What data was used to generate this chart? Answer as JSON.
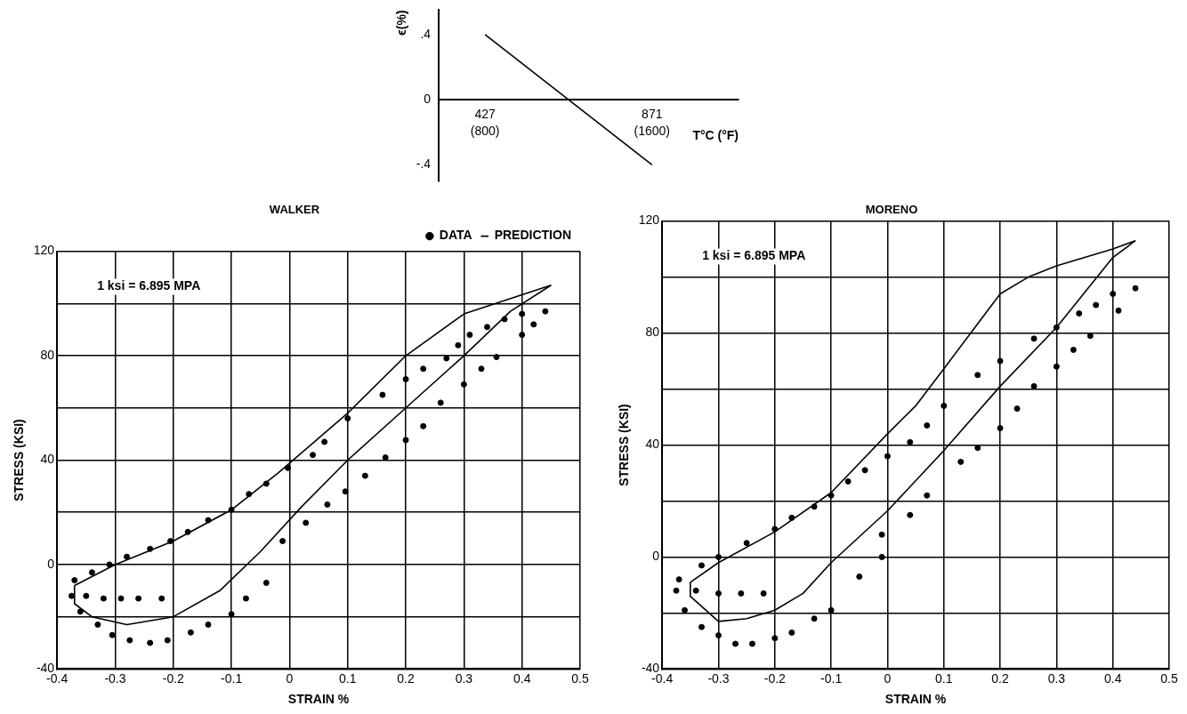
{
  "chart_data": [
    {
      "type": "line",
      "xlabel": "T°C (°F)",
      "ylabel": "ϵ(%)",
      "grid": false,
      "x": [
        427,
        871
      ],
      "xlim": [
        304,
        1101
      ],
      "ylim": [
        -0.5,
        0.55
      ],
      "xticks": [
        427,
        871
      ],
      "annotations": [
        "(800)",
        "(1600)"
      ],
      "yticks": [
        {
          "value": -0.4,
          "label": "-.4"
        },
        0,
        {
          "value": 0.4,
          "label": ".4"
        }
      ],
      "series": [
        {
          "color": "#000000",
          "values": [
            0.4,
            -0.4
          ]
        }
      ]
    },
    {
      "type": "scatter",
      "title": "WALKER",
      "xlabel": "STRAIN %",
      "ylabel": "STRESS (KSI)",
      "grid": true,
      "legend": "top right",
      "annotations": [
        "1 ksi = 6.895 MPA"
      ],
      "xlim": [
        -0.4,
        0.5
      ],
      "ylim": [
        -40,
        120
      ],
      "xticks": [
        -0.4,
        -0.3,
        -0.2,
        -0.1,
        0,
        0.1,
        0.2,
        0.3,
        0.4,
        0.5
      ],
      "yticks": [
        -40,
        {
          "value": -20,
          "label": null
        },
        0,
        {
          "value": 20,
          "label": null
        },
        40,
        {
          "value": 60,
          "label": null
        },
        80,
        {
          "value": 100,
          "label": null
        },
        120
      ],
      "series": [
        {
          "name": "DATA",
          "type": "scatter",
          "color": "#000000",
          "x": [
            0.44,
            0.42,
            0.4,
            0.356,
            0.33,
            0.3,
            0.26,
            0.23,
            0.2,
            0.165,
            0.13,
            0.096,
            0.065,
            0.028,
            -0.012,
            -0.04,
            -0.075,
            -0.1,
            -0.14,
            -0.17,
            -0.21,
            -0.24,
            -0.275,
            -0.305,
            -0.33,
            -0.36,
            -0.375,
            -0.37,
            -0.34,
            -0.31,
            -0.28,
            -0.24,
            -0.205,
            -0.175,
            -0.14,
            -0.1,
            -0.07,
            -0.04,
            -0.003,
            0.04,
            0.06,
            0.1,
            0.16,
            0.2,
            0.23,
            0.27,
            0.29,
            0.31,
            0.34,
            0.37,
            0.4,
            -0.35,
            -0.32,
            -0.29,
            -0.26,
            -0.22
          ],
          "values": [
            97,
            92,
            88,
            79.5,
            75,
            69,
            62,
            53,
            47.7,
            41,
            34,
            28,
            23,
            16,
            9,
            -7,
            -13,
            -19,
            -23,
            -26,
            -29,
            -30,
            -29,
            -27,
            -23,
            -18,
            -12,
            -6,
            -3,
            0,
            3,
            6,
            9,
            12.5,
            17,
            21,
            27,
            31,
            37,
            42,
            47,
            56,
            65,
            71,
            75,
            79,
            84,
            88,
            91,
            94,
            96,
            -12,
            -13,
            -13,
            -13,
            -13
          ]
        },
        {
          "name": "PREDICTION",
          "type": "line",
          "color": "#000000",
          "x": [
            -0.37,
            -0.3,
            -0.2,
            -0.1,
            -0.02,
            0.1,
            0.2,
            0.3,
            0.45
          ],
          "values": [
            -8,
            0,
            9,
            21,
            35,
            58,
            80,
            96,
            107
          ]
        },
        {
          "type": "line",
          "color": "#000000",
          "x": [
            0.45,
            0.38,
            0.3,
            0.2,
            0.1,
            0.02,
            -0.05,
            -0.12,
            -0.2,
            -0.28,
            -0.34,
            -0.37,
            -0.37
          ],
          "values": [
            107,
            97,
            80,
            60,
            40,
            22,
            5,
            -10,
            -20,
            -23,
            -20,
            -15,
            -8
          ]
        }
      ]
    },
    {
      "type": "scatter",
      "title": "MORENO",
      "xlabel": "STRAIN %",
      "ylabel": "STRESS (KSI)",
      "grid": true,
      "annotations": [
        "1 ksi = 6.895 MPA"
      ],
      "xlim": [
        -0.4,
        0.5
      ],
      "ylim": [
        -40,
        120
      ],
      "xticks": [
        -0.4,
        -0.3,
        -0.2,
        -0.1,
        0,
        0.1,
        0.2,
        0.3,
        0.4,
        0.5
      ],
      "yticks": [
        -40,
        {
          "value": -20,
          "label": null
        },
        0,
        {
          "value": 20,
          "label": null
        },
        40,
        {
          "value": 60,
          "label": null
        },
        80,
        {
          "value": 100,
          "label": null
        },
        120
      ],
      "series": [
        {
          "type": "scatter",
          "color": "#000000",
          "x": [
            -0.37,
            -0.33,
            -0.3,
            -0.25,
            -0.2,
            -0.17,
            -0.13,
            -0.1,
            -0.07,
            -0.04,
            0,
            0.04,
            0.07,
            0.1,
            0.16,
            0.2,
            0.26,
            0.3,
            0.34,
            0.37,
            0.4,
            0.44,
            0.41,
            0.36,
            0.33,
            0.3,
            0.26,
            0.23,
            0.2,
            0.16,
            0.13,
            0.07,
            0.04,
            -0.01,
            -0.01,
            -0.05,
            -0.1,
            -0.13,
            -0.17,
            -0.2,
            -0.24,
            -0.27,
            -0.3,
            -0.33,
            -0.36,
            -0.375,
            -0.34,
            -0.3,
            -0.26,
            -0.22
          ],
          "values": [
            -8,
            -3,
            0,
            5,
            10,
            14,
            18,
            22,
            27,
            31,
            36,
            41,
            47,
            54,
            65,
            70,
            78,
            82,
            87,
            90,
            94,
            96,
            88,
            79,
            74,
            68,
            61,
            53,
            46,
            39,
            34,
            22,
            15,
            8,
            0,
            -7,
            -19,
            -22,
            -27,
            -29,
            -31,
            -31,
            -28,
            -25,
            -19,
            -12,
            -12,
            -13,
            -13,
            -13
          ]
        },
        {
          "type": "line",
          "color": "#000000",
          "x": [
            -0.35,
            -0.3,
            -0.2,
            -0.1,
            0,
            0.05,
            0.103,
            0.159,
            0.2,
            0.25,
            0.3,
            0.4,
            0.44
          ],
          "values": [
            -9,
            -2,
            9,
            23,
            44,
            54,
            68,
            83,
            94,
            100,
            104,
            110,
            113
          ]
        },
        {
          "type": "line",
          "color": "#000000",
          "x": [
            0.44,
            0.4,
            0.3,
            0.2,
            0.1,
            0,
            -0.1,
            -0.15,
            -0.2,
            -0.25,
            -0.3,
            -0.35,
            -0.35
          ],
          "values": [
            113,
            107,
            82,
            61,
            38,
            16.5,
            -2,
            -13,
            -19,
            -22,
            -23,
            -14,
            -9
          ]
        }
      ]
    }
  ]
}
